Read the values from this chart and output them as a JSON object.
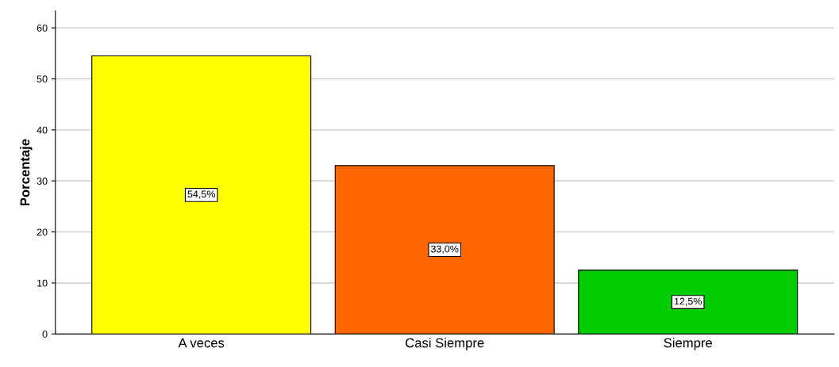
{
  "chart_data": {
    "type": "bar",
    "ylabel": "Porcentaje",
    "categories": [
      "A veces",
      "Casi Siempre",
      "Siempre"
    ],
    "values": [
      54.5,
      33.0,
      12.5
    ],
    "colors": [
      "#ffff00",
      "#ff6600",
      "#00cc00"
    ],
    "value_labels": [
      "54,5%",
      "33,0%",
      "12,5%"
    ],
    "ylim": [
      0,
      63.3
    ],
    "yticks": [
      0,
      10,
      20,
      30,
      40,
      50,
      60
    ],
    "grid": "y",
    "legend": false
  }
}
